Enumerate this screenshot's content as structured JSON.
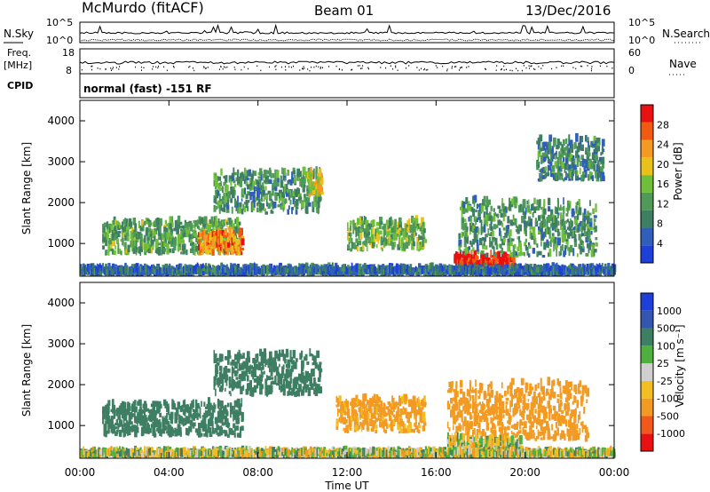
{
  "header": {
    "station": "McMurdo (fitACF)",
    "beam": "Beam 01",
    "date": "13/Dec/2016"
  },
  "left_labels": {
    "nsky": "N.Sky",
    "freq_line1": "Freq.",
    "freq_line2": "[MHz]",
    "cpid": "CPID"
  },
  "right_labels": {
    "nsearch": "N.Search",
    "nave": "Nave"
  },
  "program_text": "normal (fast) -151 RF",
  "colors": {
    "power_scale": [
      "#1f3fd9",
      "#2f5fb8",
      "#3e7e62",
      "#4f9a58",
      "#6fbf3a",
      "#e8c21a",
      "#f39a22",
      "#f25a12",
      "#e81010"
    ],
    "velocity_scale": [
      "#1f3fd9",
      "#3556b0",
      "#3e7e62",
      "#4fb040",
      "#cfcfcf",
      "#f2be22",
      "#f29a22",
      "#f2581a",
      "#e81010"
    ]
  },
  "chart_data": [
    {
      "type": "line",
      "title": "",
      "series": [
        {
          "name": "N.Sky"
        },
        {
          "name": "N.Search"
        }
      ],
      "ytick_labels_left": [
        "10^5",
        "10^0"
      ],
      "ytick_labels_right": [
        "10^5",
        "10^0"
      ],
      "ylim": [
        1,
        100000
      ],
      "yscale": "log"
    },
    {
      "type": "line",
      "series": [
        {
          "name": "Freq. [MHz]"
        },
        {
          "name": "Nave"
        }
      ],
      "ytick_labels_left": [
        "18",
        "8"
      ],
      "ytick_labels_right": [
        "60",
        "0"
      ],
      "ylim_left": [
        8,
        18
      ],
      "ylim_right": [
        0,
        60
      ]
    },
    {
      "type": "heatmap",
      "quantity": "Power",
      "xlabel": "",
      "ylabel": "Slant Range [km]",
      "xlim": [
        "00:00",
        "00:00"
      ],
      "ylim": [
        200,
        4500
      ],
      "yticks": [
        "1000",
        "2000",
        "3000",
        "4000"
      ],
      "colorbar_label": "Power [dB]",
      "colorbar_ticks": [
        "4",
        "8",
        "12",
        "16",
        "20",
        "24",
        "28"
      ],
      "colorbar_range": [
        0,
        30
      ],
      "regions": [
        {
          "t": [
            1.0,
            7.2
          ],
          "r": [
            700,
            1500
          ],
          "level": 0.4
        },
        {
          "t": [
            5.3,
            7.3
          ],
          "r": [
            700,
            1200
          ],
          "level": 0.75
        },
        {
          "t": [
            6.0,
            10.8
          ],
          "r": [
            1700,
            2700
          ],
          "level": 0.35
        },
        {
          "t": [
            10.2,
            10.9
          ],
          "r": [
            2100,
            2700
          ],
          "level": 0.6
        },
        {
          "t": [
            12.0,
            15.5
          ],
          "r": [
            800,
            1500
          ],
          "level": 0.45
        },
        {
          "t": [
            16.8,
            19.5
          ],
          "r": [
            300,
            650
          ],
          "level": 0.95
        },
        {
          "t": [
            17.0,
            23.2
          ],
          "r": [
            650,
            2000
          ],
          "level": 0.35
        },
        {
          "t": [
            20.5,
            23.5
          ],
          "r": [
            2500,
            3500
          ],
          "level": 0.3
        },
        {
          "t": [
            0.0,
            24.0
          ],
          "r": [
            200,
            330
          ],
          "level": 0.2
        }
      ]
    },
    {
      "type": "heatmap",
      "quantity": "Velocity",
      "xlabel": "Time UT",
      "ylabel": "Slant Range [km]",
      "xticks": [
        "00:00",
        "04:00",
        "08:00",
        "12:00",
        "16:00",
        "20:00",
        "00:00"
      ],
      "yticks": [
        "1000",
        "2000",
        "3000",
        "4000"
      ],
      "ylim": [
        200,
        4500
      ],
      "colorbar_label": "Velocity [m s⁻¹]",
      "colorbar_ticks": [
        "1000",
        "500",
        "100",
        "25",
        "-25",
        "-100",
        "-500",
        "-1000"
      ],
      "regions": [
        {
          "t": [
            1.0,
            7.3
          ],
          "r": [
            700,
            1500
          ],
          "velocity": 300
        },
        {
          "t": [
            6.0,
            10.8
          ],
          "r": [
            1700,
            2700
          ],
          "velocity": 250
        },
        {
          "t": [
            11.5,
            15.5
          ],
          "r": [
            800,
            1600
          ],
          "velocity": -200
        },
        {
          "t": [
            16.5,
            22.8
          ],
          "r": [
            600,
            2000
          ],
          "velocity": -250
        },
        {
          "t": [
            16.5,
            19.8
          ],
          "r": [
            250,
            650
          ],
          "velocity": 0
        },
        {
          "t": [
            0.0,
            24.0
          ],
          "r": [
            200,
            300
          ],
          "velocity": 0
        }
      ]
    }
  ]
}
